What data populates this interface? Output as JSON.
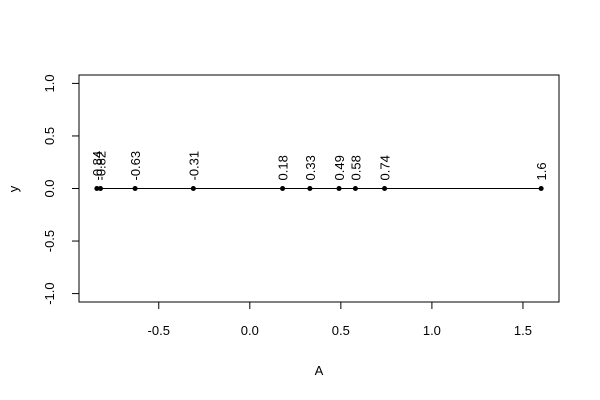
{
  "chart_data": {
    "type": "line",
    "x": [
      -0.84,
      -0.82,
      -0.63,
      -0.31,
      0.18,
      0.33,
      0.49,
      0.58,
      0.74,
      1.6
    ],
    "values": [
      0,
      0,
      0,
      0,
      0,
      0,
      0,
      0,
      0,
      0
    ],
    "color": "#000000",
    "x_label": "A",
    "y_label": "y",
    "xlim": [
      -0.938,
      1.698
    ],
    "ylim": [
      -1.08,
      1.08
    ],
    "xticks": [
      -0.5,
      {
        "value": 0,
        "label": "0.0"
      },
      0.5,
      {
        "value": 1,
        "label": "1.0"
      },
      1.5
    ],
    "yticks": [
      {
        "value": -1,
        "label": "-1.0"
      },
      -0.5,
      {
        "value": 0,
        "label": "0.0"
      },
      0.5,
      {
        "value": 1,
        "label": "1.0"
      }
    ]
  }
}
